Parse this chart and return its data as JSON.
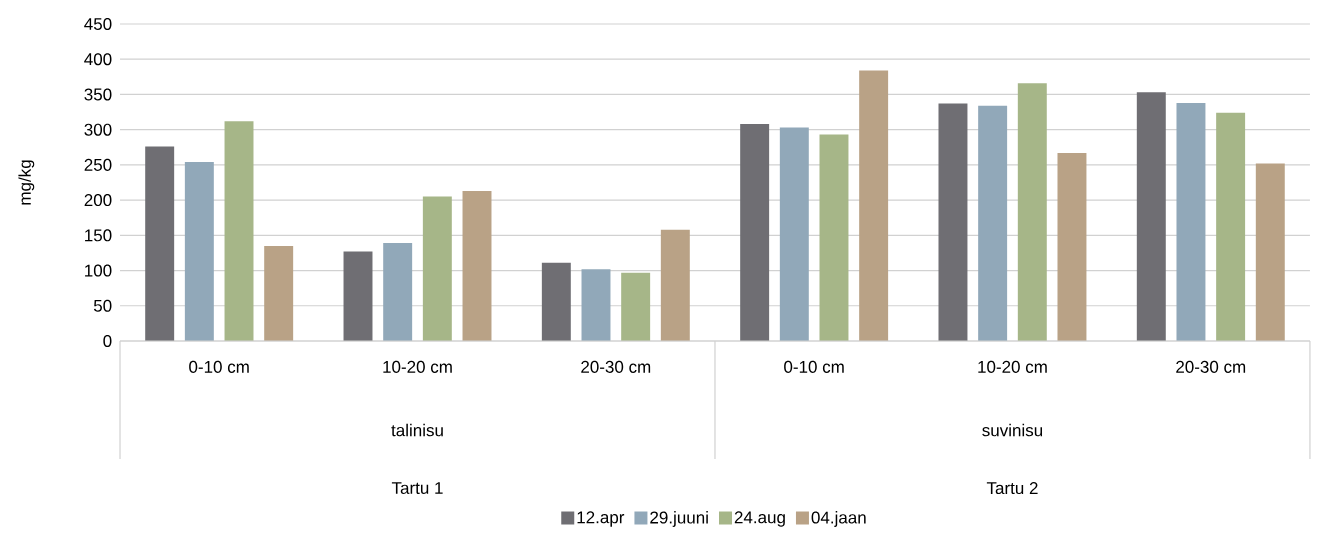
{
  "chart_data": {
    "type": "bar",
    "ylabel": "mg/kg",
    "categories": [
      "0-10 cm",
      "10-20 cm",
      "20-30 cm",
      "0-10 cm",
      "10-20 cm",
      "20-30 cm"
    ],
    "annotations": [
      "talinisu",
      "suvinisu",
      "Tartu 1",
      "Tartu 2"
    ],
    "series": [
      {
        "name": "12.apr",
        "color": "#6f6e73",
        "values": [
          276,
          127,
          111,
          308,
          337,
          353
        ]
      },
      {
        "name": "29.juuni",
        "color": "#91a8b9",
        "values": [
          254,
          139,
          102,
          303,
          334,
          338
        ]
      },
      {
        "name": "24.aug",
        "color": "#a6b688",
        "values": [
          312,
          205,
          97,
          293,
          366,
          324
        ]
      },
      {
        "name": "04.jaan",
        "color": "#b9a286",
        "values": [
          135,
          213,
          158,
          384,
          267,
          252
        ]
      }
    ],
    "ylim": [
      0,
      450
    ],
    "yticks": [
      0,
      50,
      100,
      150,
      200,
      250,
      300,
      350,
      400,
      450
    ],
    "grid": "y",
    "legend": "bottom"
  }
}
